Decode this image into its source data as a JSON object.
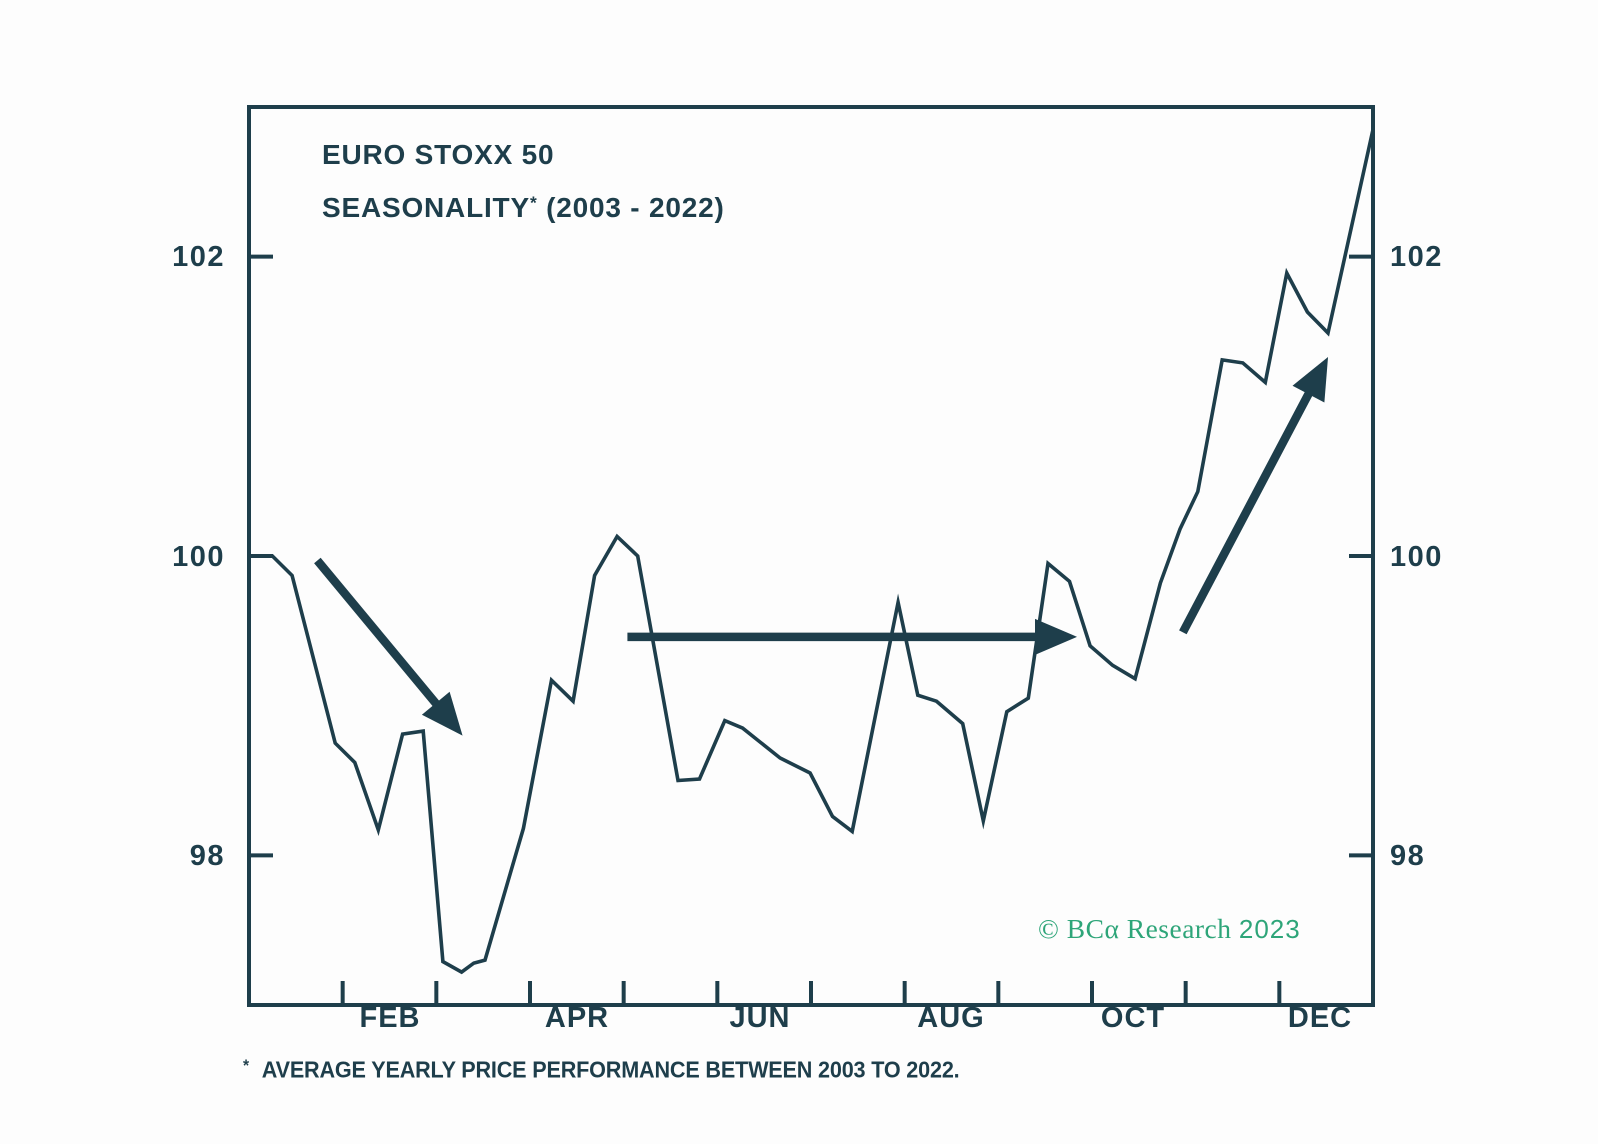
{
  "chart_data": {
    "type": "line",
    "title": "EURO STOXX 50 SEASONALITY* (2003 - 2022)",
    "title_line1": "EURO STOXX 50",
    "title_line2_word": "SEASONALITY",
    "title_line2_sup": "*",
    "title_line2_rest": " (2003 - 2022)",
    "xlabel": "",
    "ylabel": "",
    "x_tick_labels": [
      "FEB",
      "APR",
      "JUN",
      "AUG",
      "OCT",
      "DEC"
    ],
    "y_tick_values": [
      98,
      100,
      102
    ],
    "y_tick_labels": [
      "98",
      "100",
      "102"
    ],
    "ylim": [
      97.0,
      103.0
    ],
    "xlim_months": [
      0,
      12
    ],
    "grid": false,
    "legend": "none",
    "series": [
      {
        "name": "Average yearly price performance 2003-2022 (index, start of year = 100)",
        "x_unit": "month (0 = Jan 1, 12 = Dec 31)",
        "points": [
          [
            0.0,
            100.0
          ],
          [
            0.25,
            100.0
          ],
          [
            0.46,
            99.87
          ],
          [
            0.92,
            98.75
          ],
          [
            1.13,
            98.62
          ],
          [
            1.38,
            98.17
          ],
          [
            1.64,
            98.81
          ],
          [
            1.86,
            98.83
          ],
          [
            2.07,
            97.29
          ],
          [
            2.27,
            97.22
          ],
          [
            2.4,
            97.28
          ],
          [
            2.52,
            97.3
          ],
          [
            2.93,
            98.18
          ],
          [
            3.23,
            99.17
          ],
          [
            3.46,
            99.03
          ],
          [
            3.69,
            99.87
          ],
          [
            3.93,
            100.13
          ],
          [
            4.15,
            100.0
          ],
          [
            4.58,
            98.5
          ],
          [
            4.81,
            98.51
          ],
          [
            5.08,
            98.9
          ],
          [
            5.27,
            98.85
          ],
          [
            5.67,
            98.65
          ],
          [
            5.99,
            98.55
          ],
          [
            6.23,
            98.26
          ],
          [
            6.44,
            98.16
          ],
          [
            6.93,
            99.69
          ],
          [
            7.14,
            99.07
          ],
          [
            7.34,
            99.03
          ],
          [
            7.62,
            98.88
          ],
          [
            7.84,
            98.23
          ],
          [
            8.09,
            98.96
          ],
          [
            8.32,
            99.05
          ],
          [
            8.53,
            99.95
          ],
          [
            8.76,
            99.83
          ],
          [
            8.98,
            99.4
          ],
          [
            9.22,
            99.27
          ],
          [
            9.46,
            99.18
          ],
          [
            9.73,
            99.82
          ],
          [
            9.94,
            100.18
          ],
          [
            10.13,
            100.43
          ],
          [
            10.39,
            101.31
          ],
          [
            10.61,
            101.29
          ],
          [
            10.85,
            101.16
          ],
          [
            11.08,
            101.89
          ],
          [
            11.3,
            101.63
          ],
          [
            11.52,
            101.49
          ],
          [
            12.0,
            102.85
          ]
        ]
      }
    ],
    "annotations": {
      "arrows": [
        {
          "name": "early-year-decline-arrow",
          "from": [
            0.73,
            99.97
          ],
          "to": [
            2.28,
            98.8
          ]
        },
        {
          "name": "summer-sideways-arrow",
          "from": [
            4.04,
            99.46
          ],
          "to": [
            8.84,
            99.46
          ]
        },
        {
          "name": "year-end-rally-arrow",
          "from": [
            9.97,
            99.49
          ],
          "to": [
            11.52,
            101.33
          ]
        }
      ]
    },
    "footnote_marker": "*",
    "footnote": "AVERAGE YEARLY PRICE PERFORMANCE BETWEEN 2003 TO 2022.",
    "copyright_main": "© BCα Research ",
    "copyright_year": "2023",
    "colors": {
      "ink": "#1e3e4b",
      "green": "#2ea579",
      "background": "#fdfdfd"
    }
  }
}
